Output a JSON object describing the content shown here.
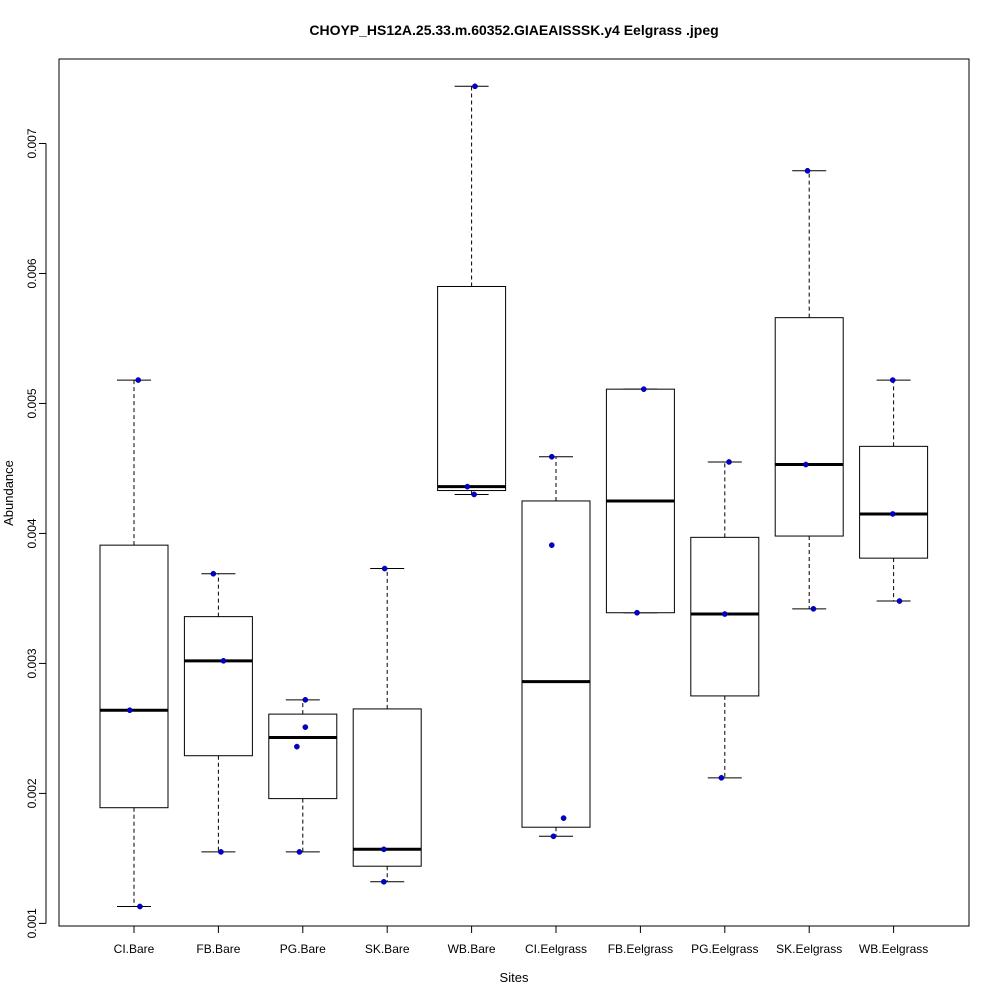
{
  "chart_data": {
    "type": "boxplot",
    "title": "CHOYP_HS12A.25.33.m.60352.GIAEAISSSK.y4 Eelgrass .jpeg",
    "xlabel": "Sites",
    "ylabel": "Abundance",
    "ylim": [
      0.00098,
      0.00765
    ],
    "yticks": [
      0.001,
      0.002,
      0.003,
      0.004,
      0.005,
      0.006,
      0.007
    ],
    "ytick_labels": [
      "0.001",
      "0.002",
      "0.003",
      "0.004",
      "0.005",
      "0.006",
      "0.007"
    ],
    "categories": [
      "CI.Bare",
      "FB.Bare",
      "PG.Bare",
      "SK.Bare",
      "WB.Bare",
      "CI.Eelgrass",
      "FB.Eelgrass",
      "PG.Eelgrass",
      "SK.Eelgrass",
      "WB.Eelgrass"
    ],
    "boxes": [
      {
        "whisker_low": 0.00113,
        "q1": 0.00189,
        "median": 0.00264,
        "q3": 0.00391,
        "whisker_high": 0.00518
      },
      {
        "whisker_low": 0.00155,
        "q1": 0.00229,
        "median": 0.00302,
        "q3": 0.00336,
        "whisker_high": 0.00369
      },
      {
        "whisker_low": 0.00155,
        "q1": 0.00196,
        "median": 0.00243,
        "q3": 0.00261,
        "whisker_high": 0.00272
      },
      {
        "whisker_low": 0.00132,
        "q1": 0.00144,
        "median": 0.00157,
        "q3": 0.00265,
        "whisker_high": 0.00373
      },
      {
        "whisker_low": 0.0043,
        "q1": 0.00433,
        "median": 0.00436,
        "q3": 0.0059,
        "whisker_high": 0.00744
      },
      {
        "whisker_low": 0.00167,
        "q1": 0.00174,
        "median": 0.00286,
        "q3": 0.00425,
        "whisker_high": 0.00459
      },
      {
        "whisker_low": 0.00339,
        "q1": 0.00339,
        "median": 0.00425,
        "q3": 0.00511,
        "whisker_high": 0.00511
      },
      {
        "whisker_low": 0.00212,
        "q1": 0.00275,
        "median": 0.00338,
        "q3": 0.00397,
        "whisker_high": 0.00455
      },
      {
        "whisker_low": 0.00342,
        "q1": 0.00398,
        "median": 0.00453,
        "q3": 0.00566,
        "whisker_high": 0.00679
      },
      {
        "whisker_low": 0.00348,
        "q1": 0.00381,
        "median": 0.00415,
        "q3": 0.00467,
        "whisker_high": 0.00518
      }
    ],
    "points": [
      {
        "group": 0,
        "jitter": -0.05,
        "value": 0.00264
      },
      {
        "group": 0,
        "jitter": 0.05,
        "value": 0.00518
      },
      {
        "group": 0,
        "jitter": 0.07,
        "value": 0.00113
      },
      {
        "group": 1,
        "jitter": -0.06,
        "value": 0.00369
      },
      {
        "group": 1,
        "jitter": 0.06,
        "value": 0.00302
      },
      {
        "group": 1,
        "jitter": 0.03,
        "value": 0.00155
      },
      {
        "group": 2,
        "jitter": 0.03,
        "value": 0.00272
      },
      {
        "group": 2,
        "jitter": 0.03,
        "value": 0.00251
      },
      {
        "group": 2,
        "jitter": -0.07,
        "value": 0.00236
      },
      {
        "group": 2,
        "jitter": -0.04,
        "value": 0.00155
      },
      {
        "group": 3,
        "jitter": -0.04,
        "value": 0.00157
      },
      {
        "group": 3,
        "jitter": -0.04,
        "value": 0.00132
      },
      {
        "group": 3,
        "jitter": -0.03,
        "value": 0.00373
      },
      {
        "group": 4,
        "jitter": 0.04,
        "value": 0.00744
      },
      {
        "group": 4,
        "jitter": -0.05,
        "value": 0.00436
      },
      {
        "group": 4,
        "jitter": 0.03,
        "value": 0.0043
      },
      {
        "group": 5,
        "jitter": -0.05,
        "value": 0.00459
      },
      {
        "group": 5,
        "jitter": -0.05,
        "value": 0.00391
      },
      {
        "group": 5,
        "jitter": 0.09,
        "value": 0.00181
      },
      {
        "group": 5,
        "jitter": -0.03,
        "value": 0.00167
      },
      {
        "group": 6,
        "jitter": 0.04,
        "value": 0.00511
      },
      {
        "group": 6,
        "jitter": -0.04,
        "value": 0.00339
      },
      {
        "group": 7,
        "jitter": 0.05,
        "value": 0.00455
      },
      {
        "group": 7,
        "jitter": 0.0,
        "value": 0.00338
      },
      {
        "group": 7,
        "jitter": -0.04,
        "value": 0.00212
      },
      {
        "group": 8,
        "jitter": -0.02,
        "value": 0.00679
      },
      {
        "group": 8,
        "jitter": -0.04,
        "value": 0.00453
      },
      {
        "group": 8,
        "jitter": 0.05,
        "value": 0.00342
      },
      {
        "group": 9,
        "jitter": -0.01,
        "value": 0.00518
      },
      {
        "group": 9,
        "jitter": -0.01,
        "value": 0.00415
      },
      {
        "group": 9,
        "jitter": 0.07,
        "value": 0.00348
      }
    ],
    "point_color": "#0000cd",
    "grid": false,
    "legend": "none"
  }
}
